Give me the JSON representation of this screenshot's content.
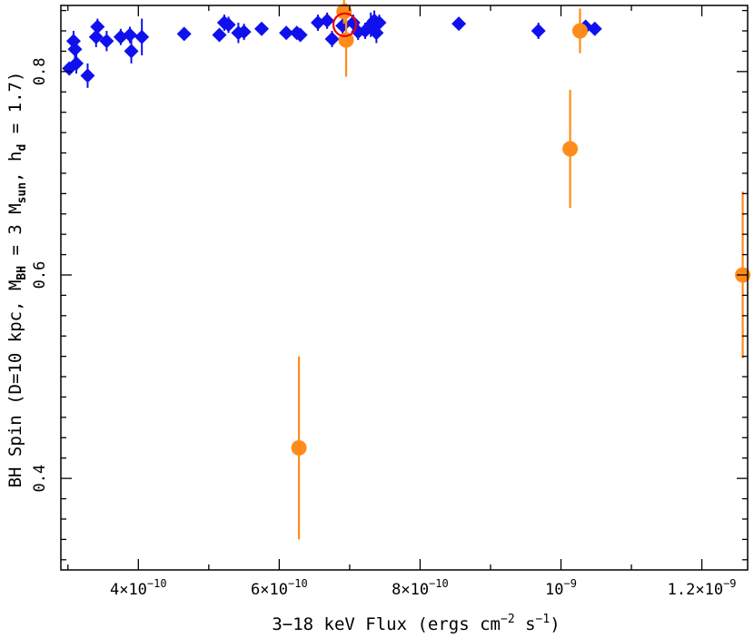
{
  "chart_data": {
    "type": "scatter",
    "title": "",
    "xlabel": {
      "main": "3−18 keV Flux (ergs cm",
      "sup1": "−2",
      "mid": " s",
      "sup2": "−1",
      "end": ")"
    },
    "ylabel": {
      "p1": "BH Spin (D=10 kpc, M",
      "sub1": "BH",
      "p2": " = 3 M",
      "sub2": "sun",
      "p3": ", h",
      "sub3": "d",
      "p4": " = 1.7)"
    },
    "xlim": [
      2.9e-10,
      1.265e-09
    ],
    "ylim": [
      0.31,
      0.865
    ],
    "x_ticks": [
      {
        "value": 4e-10,
        "mant": "4×10",
        "exp": "−10"
      },
      {
        "value": 6e-10,
        "mant": "6×10",
        "exp": "−10"
      },
      {
        "value": 8e-10,
        "mant": "8×10",
        "exp": "−10"
      },
      {
        "value": 1e-09,
        "mant": "10",
        "exp": "−9"
      },
      {
        "value": 1.2e-09,
        "mant": "1.2×10",
        "exp": "−9"
      }
    ],
    "y_ticks": [
      {
        "value": 0.4,
        "label": "0.4"
      },
      {
        "value": 0.6,
        "label": "0.6"
      },
      {
        "value": 0.8,
        "label": "0.8"
      }
    ],
    "colors": {
      "series_a": "#1010ee",
      "series_b": "#ff8c1a",
      "marker_circle": "#ee0000",
      "axis": "#000000"
    },
    "series": [
      {
        "marker": "diamond",
        "points": [
          {
            "x": 3.02e-10,
            "y": 0.803,
            "yerr": 0.005
          },
          {
            "x": 3.08e-10,
            "y": 0.83,
            "yerr": 0.01
          },
          {
            "x": 3.1e-10,
            "y": 0.822,
            "yerr": 0.012
          },
          {
            "x": 3.12e-10,
            "y": 0.808,
            "yerr": 0.01
          },
          {
            "x": 3.28e-10,
            "y": 0.796,
            "yerr": 0.012
          },
          {
            "x": 3.4e-10,
            "y": 0.834,
            "yerr": 0.01
          },
          {
            "x": 3.42e-10,
            "y": 0.844,
            "yerr": 0.008
          },
          {
            "x": 3.55e-10,
            "y": 0.83,
            "yerr": 0.01
          },
          {
            "x": 3.75e-10,
            "y": 0.834,
            "yerr": 0.008
          },
          {
            "x": 3.88e-10,
            "y": 0.836,
            "yerr": 0.008
          },
          {
            "x": 3.9e-10,
            "y": 0.82,
            "yerr": 0.012
          },
          {
            "x": 4.05e-10,
            "y": 0.834,
            "yerr": 0.018
          },
          {
            "x": 4.65e-10,
            "y": 0.837,
            "yerr": 0.006
          },
          {
            "x": 5.15e-10,
            "y": 0.836,
            "yerr": 0.006
          },
          {
            "x": 5.22e-10,
            "y": 0.848,
            "yerr": 0.008
          },
          {
            "x": 5.28e-10,
            "y": 0.846,
            "yerr": 0.008
          },
          {
            "x": 5.42e-10,
            "y": 0.838,
            "yerr": 0.01
          },
          {
            "x": 5.5e-10,
            "y": 0.839,
            "yerr": 0.008
          },
          {
            "x": 5.75e-10,
            "y": 0.842,
            "yerr": 0.006
          },
          {
            "x": 6.1e-10,
            "y": 0.838,
            "yerr": 0.006
          },
          {
            "x": 6.25e-10,
            "y": 0.838,
            "yerr": 0.006
          },
          {
            "x": 6.3e-10,
            "y": 0.836,
            "yerr": 0.006
          },
          {
            "x": 6.55e-10,
            "y": 0.848,
            "yerr": 0.008
          },
          {
            "x": 6.68e-10,
            "y": 0.85,
            "yerr": 0.008
          },
          {
            "x": 6.75e-10,
            "y": 0.832,
            "yerr": 0.008
          },
          {
            "x": 6.9e-10,
            "y": 0.845,
            "yerr": 0.01
          },
          {
            "x": 7.05e-10,
            "y": 0.848,
            "yerr": 0.008
          },
          {
            "x": 7.12e-10,
            "y": 0.839,
            "yerr": 0.008
          },
          {
            "x": 7.22e-10,
            "y": 0.84,
            "yerr": 0.008
          },
          {
            "x": 7.3e-10,
            "y": 0.846,
            "yerr": 0.012
          },
          {
            "x": 7.35e-10,
            "y": 0.85,
            "yerr": 0.01
          },
          {
            "x": 7.38e-10,
            "y": 0.838,
            "yerr": 0.01
          },
          {
            "x": 7.42e-10,
            "y": 0.848,
            "yerr": 0.008
          },
          {
            "x": 8.55e-10,
            "y": 0.847,
            "yerr": 0.006
          },
          {
            "x": 9.68e-10,
            "y": 0.84,
            "yerr": 0.008
          },
          {
            "x": 1.035e-09,
            "y": 0.844,
            "yerr": 0.006
          },
          {
            "x": 1.048e-09,
            "y": 0.842,
            "yerr": 0.006
          }
        ]
      },
      {
        "marker": "circle",
        "points": [
          {
            "x": 6.92e-10,
            "y": 0.859,
            "yerr": 0.012
          },
          {
            "x": 6.95e-10,
            "y": 0.831,
            "yerr": 0.036
          },
          {
            "x": 6.28e-10,
            "y": 0.43,
            "yerr": 0.09
          },
          {
            "x": 1.013e-09,
            "y": 0.724,
            "yerr": 0.058
          },
          {
            "x": 1.027e-09,
            "y": 0.84,
            "yerr": 0.022
          },
          {
            "x": 1.258e-09,
            "y": 0.6,
            "yerr": 0.082
          }
        ]
      }
    ],
    "highlight": {
      "x": 6.93e-10,
      "y": 0.846,
      "shape": "open-circle"
    }
  }
}
